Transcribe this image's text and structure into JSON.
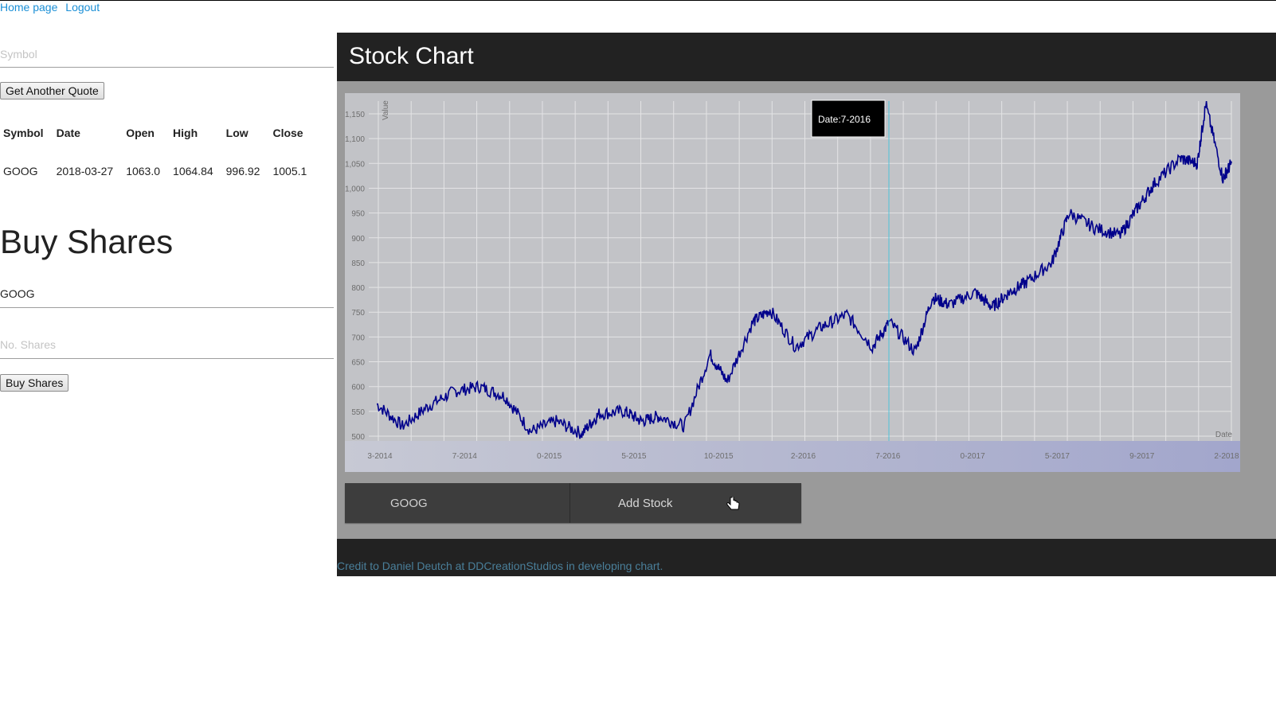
{
  "nav": {
    "home": "Home page",
    "logout": "Logout"
  },
  "quote_form": {
    "symbol_placeholder": "Symbol",
    "button": "Get Another Quote"
  },
  "quote_table": {
    "headers": [
      "Symbol",
      "Date",
      "Open",
      "High",
      "Low",
      "Close"
    ],
    "row": [
      "GOOG",
      "2018-03-27",
      "1063.0",
      "1064.84",
      "996.92",
      "1005.1"
    ]
  },
  "buy": {
    "title": "Buy Shares",
    "symbol_value": "GOOG",
    "shares_placeholder": "No. Shares",
    "button": "Buy Shares"
  },
  "panel": {
    "title": "Stock Chart",
    "stock_value": "GOOG",
    "add_button": "Add Stock",
    "credit": "Credit to Daniel Deutch at DDCreationStudios in developing chart."
  },
  "colors": {
    "header_bg": "#222222",
    "panel_bg": "#9a9a9a",
    "plot_bg": "#c2c3c7",
    "series": "#00008b",
    "cursor_line": "#4fc3d9",
    "link": "#1a8fd6"
  },
  "chart_data": {
    "type": "line",
    "xlabel": "Date",
    "ylabel": "Value",
    "ylim": [
      500,
      1150
    ],
    "yticks": [
      "1,150",
      "1,100",
      "1,050",
      "1,000",
      "950",
      "900",
      "850",
      "800",
      "750",
      "700",
      "650",
      "600",
      "550",
      "500"
    ],
    "xticks": [
      "3-2014",
      "7-2014",
      "0-2015",
      "5-2015",
      "10-2015",
      "2-2016",
      "7-2016",
      "0-2017",
      "5-2017",
      "9-2017",
      "2-2018"
    ],
    "grid": true,
    "tooltip": "Date:7-2016",
    "series": [
      {
        "x": [
          0.0,
          0.03,
          0.06,
          0.09,
          0.12,
          0.15,
          0.18,
          0.21,
          0.24,
          0.26,
          0.29,
          0.31,
          0.33,
          0.36,
          0.39,
          0.41,
          0.44,
          0.46,
          0.49,
          0.52,
          0.55,
          0.58,
          0.6,
          0.63,
          0.65,
          0.67,
          0.7,
          0.72,
          0.74,
          0.76,
          0.79,
          0.81,
          0.84,
          0.87,
          0.89,
          0.91,
          0.94,
          0.96,
          0.97,
          0.99,
          1.0
        ],
        "values": [
          565,
          520,
          560,
          590,
          600,
          580,
          510,
          530,
          505,
          545,
          550,
          530,
          540,
          520,
          665,
          610,
          730,
          755,
          680,
          720,
          745,
          680,
          730,
          670,
          780,
          765,
          790,
          760,
          790,
          810,
          850,
          950,
          920,
          905,
          960,
          1010,
          1060,
          1050,
          1170,
          1020,
          1050
        ]
      }
    ]
  }
}
